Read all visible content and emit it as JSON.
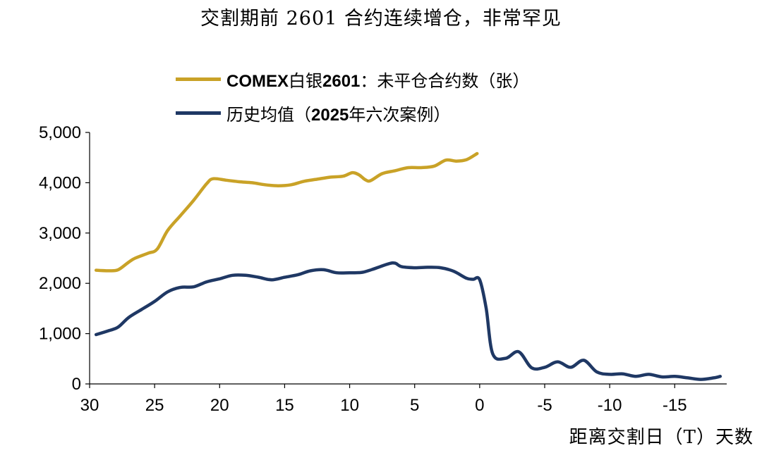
{
  "chart_data": {
    "type": "line",
    "title": "交割期前 2601 合约连续增仓，非常罕见",
    "xlabel": "距离交割日（T）天数",
    "ylabel": "",
    "xlim": [
      30,
      -19
    ],
    "ylim": [
      0,
      5000
    ],
    "x_ticks": [
      "30",
      "25",
      "20",
      "15",
      "10",
      "5",
      "0",
      "-5",
      "-10",
      "-15"
    ],
    "y_ticks": [
      "5,000",
      "4,000",
      "3,000",
      "2,000",
      "1,000",
      "0"
    ],
    "grid": false,
    "legend_position": "top",
    "series": [
      {
        "name_parts": [
          {
            "text": "COMEX",
            "bold": true
          },
          {
            "text": "白银",
            "bold": false
          },
          {
            "text": "2601",
            "bold": true
          },
          {
            "text": "：未平仓合约数（张）",
            "bold": false
          }
        ],
        "color": "#c9a227",
        "points": [
          [
            29.5,
            2260
          ],
          [
            28.5,
            2250
          ],
          [
            27.8,
            2270
          ],
          [
            27,
            2420
          ],
          [
            26.5,
            2500
          ],
          [
            25.5,
            2600
          ],
          [
            24.8,
            2680
          ],
          [
            24,
            3050
          ],
          [
            23,
            3350
          ],
          [
            22,
            3650
          ],
          [
            21,
            3980
          ],
          [
            20.5,
            4080
          ],
          [
            19.5,
            4050
          ],
          [
            18.5,
            4020
          ],
          [
            17.5,
            4000
          ],
          [
            16.5,
            3960
          ],
          [
            15.5,
            3940
          ],
          [
            14.5,
            3960
          ],
          [
            13.5,
            4030
          ],
          [
            12.5,
            4070
          ],
          [
            11.5,
            4110
          ],
          [
            10.5,
            4130
          ],
          [
            9.8,
            4200
          ],
          [
            9.3,
            4160
          ],
          [
            8.8,
            4060
          ],
          [
            8.4,
            4040
          ],
          [
            7.5,
            4180
          ],
          [
            6.5,
            4240
          ],
          [
            5.5,
            4300
          ],
          [
            4.5,
            4300
          ],
          [
            3.5,
            4330
          ],
          [
            2.6,
            4450
          ],
          [
            1.8,
            4430
          ],
          [
            1,
            4460
          ],
          [
            0.2,
            4580
          ]
        ]
      },
      {
        "name_parts": [
          {
            "text": "历史均值（",
            "bold": false
          },
          {
            "text": "2025",
            "bold": true
          },
          {
            "text": "年六次案例）",
            "bold": false
          }
        ],
        "color": "#1f3864",
        "points": [
          [
            29.5,
            980
          ],
          [
            28.5,
            1060
          ],
          [
            27.8,
            1130
          ],
          [
            27,
            1320
          ],
          [
            26,
            1480
          ],
          [
            25,
            1640
          ],
          [
            24,
            1830
          ],
          [
            23,
            1920
          ],
          [
            22,
            1930
          ],
          [
            21,
            2030
          ],
          [
            20,
            2090
          ],
          [
            19,
            2160
          ],
          [
            18,
            2160
          ],
          [
            17,
            2120
          ],
          [
            16,
            2070
          ],
          [
            15,
            2120
          ],
          [
            14,
            2170
          ],
          [
            13,
            2250
          ],
          [
            12,
            2270
          ],
          [
            11,
            2210
          ],
          [
            10,
            2210
          ],
          [
            9,
            2220
          ],
          [
            8,
            2300
          ],
          [
            7,
            2390
          ],
          [
            6.5,
            2400
          ],
          [
            6,
            2330
          ],
          [
            5,
            2310
          ],
          [
            4,
            2320
          ],
          [
            3,
            2310
          ],
          [
            2,
            2240
          ],
          [
            1,
            2100
          ],
          [
            0.5,
            2080
          ],
          [
            0,
            2070
          ],
          [
            -0.5,
            1500
          ],
          [
            -1,
            600
          ],
          [
            -2,
            510
          ],
          [
            -3,
            640
          ],
          [
            -4,
            320
          ],
          [
            -5,
            330
          ],
          [
            -6,
            440
          ],
          [
            -7,
            330
          ],
          [
            -8,
            470
          ],
          [
            -9,
            240
          ],
          [
            -10,
            190
          ],
          [
            -11,
            200
          ],
          [
            -12,
            150
          ],
          [
            -13,
            190
          ],
          [
            -14,
            140
          ],
          [
            -15,
            150
          ],
          [
            -16,
            120
          ],
          [
            -17,
            90
          ],
          [
            -18,
            120
          ],
          [
            -18.5,
            150
          ]
        ]
      }
    ]
  }
}
